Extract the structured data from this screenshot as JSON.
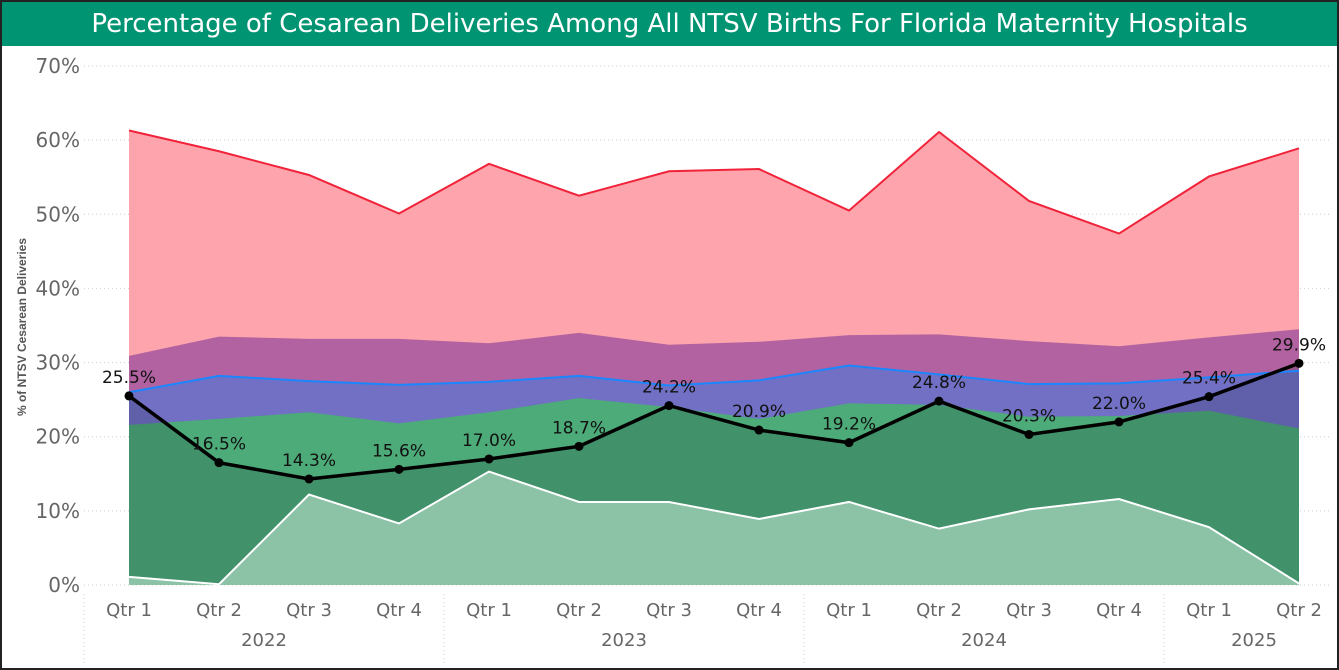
{
  "title": "Percentage of Cesarean Deliveries Among All NTSV Births For Florida Maternity Hospitals",
  "chart_data": {
    "type": "area",
    "title": "Percentage of Cesarean Deliveries Among All NTSV Births For Florida Maternity Hospitals",
    "ylabel": "% of NTSV Cesarean Deliveries",
    "xlabel": "",
    "ylim": [
      0,
      70
    ],
    "yticks": [
      "0%",
      "10%",
      "20%",
      "30%",
      "40%",
      "50%",
      "60%",
      "70%"
    ],
    "grid": true,
    "categories": [
      "Qtr 1",
      "Qtr 2",
      "Qtr 3",
      "Qtr 4",
      "Qtr 1",
      "Qtr 2",
      "Qtr 3",
      "Qtr 4",
      "Qtr 1",
      "Qtr 2",
      "Qtr 3",
      "Qtr 4",
      "Qtr 1",
      "Qtr 2"
    ],
    "years": [
      {
        "label": "2022",
        "quarters": 4
      },
      {
        "label": "2023",
        "quarters": 4
      },
      {
        "label": "2024",
        "quarters": 4
      },
      {
        "label": "2025",
        "quarters": 2
      }
    ],
    "series": [
      {
        "kind": "area",
        "fill": "#fea4ac",
        "line": "#f0233a",
        "values": [
          61.3,
          58.5,
          55.3,
          50.1,
          56.8,
          52.5,
          55.8,
          56.1,
          50.5,
          61.1,
          51.8,
          47.4,
          55.1,
          58.9
        ]
      },
      {
        "kind": "area",
        "fill": "#b262a0",
        "values": [
          30.9,
          33.5,
          33.2,
          33.2,
          32.6,
          34.0,
          32.4,
          32.8,
          33.7,
          33.8,
          32.9,
          32.2,
          33.4,
          34.5
        ]
      },
      {
        "kind": "area",
        "fill": "#7170c4",
        "line": "#1a86ff",
        "values": [
          26.0,
          28.2,
          27.5,
          27.0,
          27.4,
          28.2,
          26.9,
          27.6,
          29.6,
          28.4,
          27.1,
          27.2,
          28.0,
          28.9
        ]
      },
      {
        "kind": "area",
        "fill": "#4cab78",
        "values": [
          21.6,
          22.4,
          23.3,
          21.8,
          23.3,
          25.2,
          24.0,
          22.4,
          24.5,
          24.3,
          22.7,
          22.8,
          23.5,
          21.1
        ]
      },
      {
        "kind": "line",
        "line": "#000000",
        "labels": [
          "25.5%",
          "16.5%",
          "14.3%",
          "15.6%",
          "17.0%",
          "18.7%",
          "24.2%",
          "20.9%",
          "19.2%",
          "24.8%",
          "20.3%",
          "22.0%",
          "25.4%",
          "29.9%"
        ],
        "values": [
          25.5,
          16.5,
          14.3,
          15.6,
          17.0,
          18.7,
          24.2,
          20.9,
          19.2,
          24.8,
          20.3,
          22.0,
          25.4,
          29.9
        ]
      },
      {
        "kind": "area",
        "fill": "#8cc3a7",
        "line": "#ffffff",
        "values": [
          1.1,
          0.1,
          12.2,
          8.3,
          15.3,
          11.2,
          11.2,
          8.9,
          11.2,
          7.6,
          10.2,
          11.6,
          7.8,
          0.2
        ]
      }
    ]
  }
}
